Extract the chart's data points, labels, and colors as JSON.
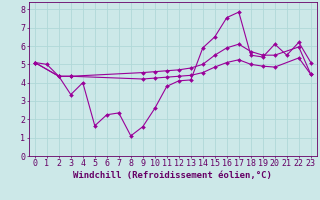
{
  "xlabel": "Windchill (Refroidissement éolien,°C)",
  "background_color": "#cce8e8",
  "grid_color": "#b0d8d8",
  "line_color": "#990099",
  "xlim": [
    -0.5,
    23.5
  ],
  "ylim": [
    0,
    8.4
  ],
  "xticks": [
    0,
    1,
    2,
    3,
    4,
    5,
    6,
    7,
    8,
    9,
    10,
    11,
    12,
    13,
    14,
    15,
    16,
    17,
    18,
    19,
    20,
    21,
    22,
    23
  ],
  "yticks": [
    0,
    1,
    2,
    3,
    4,
    5,
    6,
    7,
    8
  ],
  "line1_x": [
    0,
    1,
    2,
    3,
    4,
    5,
    6,
    7,
    8,
    9,
    10,
    11,
    12,
    13,
    14,
    15,
    16,
    17,
    18,
    19,
    20,
    21,
    22,
    23
  ],
  "line1_y": [
    5.1,
    5.0,
    4.35,
    3.35,
    4.0,
    1.65,
    2.25,
    2.35,
    1.1,
    1.6,
    2.6,
    3.8,
    4.1,
    4.15,
    5.9,
    6.5,
    7.55,
    7.85,
    5.5,
    5.4,
    6.1,
    5.5,
    6.2,
    5.1
  ],
  "line2_x": [
    0,
    2,
    3,
    9,
    10,
    11,
    12,
    13,
    14,
    15,
    16,
    17,
    18,
    19,
    20,
    22,
    23
  ],
  "line2_y": [
    5.1,
    4.35,
    4.35,
    4.55,
    4.6,
    4.65,
    4.7,
    4.8,
    5.0,
    5.5,
    5.9,
    6.1,
    5.7,
    5.5,
    5.5,
    5.95,
    4.45
  ],
  "line3_x": [
    0,
    2,
    3,
    9,
    10,
    11,
    12,
    13,
    14,
    15,
    16,
    17,
    18,
    19,
    20,
    22,
    23
  ],
  "line3_y": [
    5.1,
    4.35,
    4.35,
    4.2,
    4.25,
    4.3,
    4.35,
    4.4,
    4.55,
    4.85,
    5.1,
    5.25,
    5.0,
    4.9,
    4.85,
    5.35,
    4.45
  ],
  "font_family": "monospace",
  "label_fontsize": 6.5,
  "tick_fontsize": 6
}
